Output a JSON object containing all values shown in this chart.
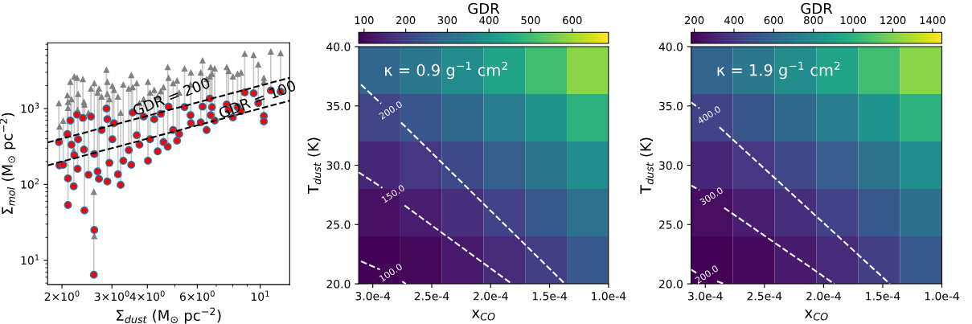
{
  "chart_data": [
    {
      "type": "scatter",
      "xlabel": "Σ$_{dust}$ (M$_{⊙}$ pc$^{−2}$)",
      "ylabel": "Σ$_{mol}$ (M$_{⊙}$ pc$^{−2}$)",
      "log": "xy",
      "grid": false,
      "legend": false,
      "xlim": [
        1.78,
        12.7
      ],
      "ylim": [
        4.8,
        7350
      ],
      "xticks": [
        {
          "value": 2,
          "label": "2×10$^{0}$"
        },
        {
          "value": 3,
          "label": "3×10$^{0}$"
        },
        {
          "value": 4,
          "label": "4×10$^{0}$"
        },
        {
          "value": 6,
          "label": "6×10$^{0}$"
        },
        {
          "value": 10,
          "label": "10$^{1}$"
        }
      ],
      "yticks": [
        {
          "value": 10,
          "label": "10$^{1}$"
        },
        {
          "value": 100,
          "label": "10$^{2}$"
        },
        {
          "value": 1000,
          "label": "10$^{3}$"
        }
      ],
      "annotations": [
        {
          "text": "GDR = 200",
          "x": 4.88,
          "y": 1390
        },
        {
          "text": "GDR = 100",
          "x": 9.8,
          "y": 1280
        }
      ],
      "series": [
        {
          "type": "scatter",
          "marker": "circle",
          "color": "#ff0000",
          "x": [
            1.95,
            1.96,
            2.02,
            2.09,
            2.1,
            2.1,
            2.14,
            2.16,
            2.2,
            2.21,
            2.26,
            2.27,
            2.28,
            2.37,
            2.39,
            2.4,
            2.48,
            2.53,
            2.59,
            2.6,
            2.6,
            2.67,
            2.7,
            2.76,
            2.87,
            2.89,
            2.89,
            2.94,
            3.01,
            3.05,
            3.15,
            3.22,
            3.29,
            3.44,
            3.51,
            3.55,
            3.67,
            3.75,
            3.88,
            4.02,
            4.09,
            4.23,
            4.35,
            4.46,
            4.56,
            4.72,
            4.75,
            4.93,
            5.09,
            5.18,
            5.41,
            5.68,
            5.7,
            6.17,
            6.26,
            6.47,
            6.64,
            6.69,
            6.76,
            6.91,
            7.62,
            7.74,
            8.01,
            8.32,
            8.56,
            8.82,
            9.48,
            9.84,
            10.3,
            10.3,
            10.9,
            11.8
          ],
          "values": [
            361,
            178,
            181,
            461,
            120,
            53.5,
            693,
            333,
            94.4,
            241,
            830,
            160,
            393,
            752,
            288,
            45.4,
            134,
            783,
            6.44,
            25.1,
            251,
            148,
            118,
            521,
            1000,
            722,
            109,
            192,
            393,
            640,
            136,
            98.4,
            205,
            283,
            181,
            885,
            444,
            333,
            783,
            205,
            393,
            722,
            272,
            850,
            361,
            313,
            1059,
            521,
            377,
            461,
            1042,
            816,
            640,
            655,
            1059,
            521,
            1352,
            816,
            1042,
            693,
            1130,
            960,
            764,
            1042,
            922,
            1629,
            1589,
            1177,
            796,
            676,
            1726,
            1671
          ],
          "errors": [
            [
              361,
              1177
            ],
            [
              178,
              580
            ],
            [
              181,
              693
            ],
            [
              461,
              1503
            ],
            [
              120,
              1225
            ],
            [
              53.5,
              1025
            ],
            [
              693,
              2255
            ],
            [
              333,
              1330
            ],
            [
              94.4,
              283
            ],
            [
              241,
              2655
            ],
            [
              830,
              2547
            ],
            [
              160,
              960
            ],
            [
              393,
              1564
            ],
            [
              752,
              2449
            ],
            [
              288,
              1225
            ],
            [
              45.4,
              1130
            ],
            [
              134,
              885
            ],
            [
              783,
              1841
            ],
            [
              6.44,
              80.2
            ],
            [
              20.9,
              25.1
            ],
            [
              251,
              2167
            ],
            [
              148,
              1629
            ],
            [
              118,
              1841
            ],
            [
              521,
              1442
            ],
            [
              1000,
              3251
            ],
            [
              722,
              2255
            ],
            [
              109,
              1564
            ],
            [
              192,
              1330
            ],
            [
              393,
              1995
            ],
            [
              640,
              1766
            ],
            [
              136,
              1442
            ],
            [
              98.4,
              885
            ],
            [
              205,
              2080
            ],
            [
              283,
              1841
            ],
            [
              181,
              2767
            ],
            [
              885,
              1918
            ],
            [
              444,
              2167
            ],
            [
              333,
              1177
            ],
            [
              783,
              1330
            ],
            [
              205,
              2255
            ],
            [
              393,
              1629
            ],
            [
              722,
              1766
            ],
            [
              272,
              1442
            ],
            [
              850,
              1698
            ],
            [
              361,
              1918
            ],
            [
              313,
              3532
            ],
            [
              1059,
              2547
            ],
            [
              521,
              2167
            ],
            [
              377,
              2350
            ],
            [
              461,
              1629
            ],
            [
              1042,
              3388
            ],
            [
              816,
              2080
            ],
            [
              640,
              2999
            ],
            [
              655,
              2999
            ],
            [
              1059,
              4325
            ],
            [
              521,
              2449
            ],
            [
              1352,
              2655
            ],
            [
              816,
              3532
            ],
            [
              1042,
              2878
            ],
            [
              693,
              3388
            ],
            [
              1130,
              3532
            ],
            [
              960,
              3126
            ],
            [
              764,
              2655
            ],
            [
              1042,
              2878
            ],
            [
              922,
              2999
            ],
            [
              1629,
              5297
            ],
            [
              1589,
              5093
            ],
            [
              1177,
              3828
            ],
            [
              796,
              2547
            ],
            [
              676,
              2255
            ],
            [
              1726,
              5662
            ],
            [
              1671,
              5395
            ]
          ]
        },
        {
          "type": "scatter",
          "marker": "triangle",
          "color": "#808080",
          "x": [
            1.95,
            1.96,
            2.02,
            2.09,
            2.1,
            2.1,
            2.14,
            2.16,
            2.2,
            2.21,
            2.26,
            2.27,
            2.28,
            2.37,
            2.39,
            2.4,
            2.48,
            2.53,
            2.59,
            2.6,
            2.6,
            2.67,
            2.7,
            2.76,
            2.87,
            2.89,
            2.89,
            2.94,
            3.01,
            3.05,
            3.15,
            3.22,
            3.29,
            3.44,
            3.51,
            3.55,
            3.67,
            3.75,
            3.88,
            4.02,
            4.09,
            4.23,
            4.35,
            4.46,
            4.56,
            4.72,
            4.75,
            4.93,
            5.09,
            5.18,
            5.41,
            5.68,
            5.7,
            6.17,
            6.26,
            6.47,
            6.64,
            6.69,
            6.76,
            6.91,
            7.62,
            7.74,
            8.01,
            8.32,
            8.56,
            8.82,
            9.48,
            9.84,
            10.3,
            10.3,
            10.9,
            11.8
          ],
          "values": [
            1177,
            580,
            693,
            1503,
            1225,
            1025,
            2255,
            1330,
            283,
            2655,
            2547,
            960,
            1564,
            2449,
            1225,
            1130,
            885,
            1841,
            80.2,
            20.9,
            2167,
            1629,
            1841,
            1442,
            3251,
            2255,
            1564,
            1330,
            1995,
            1766,
            1442,
            885,
            2080,
            1841,
            2767,
            1918,
            2167,
            1177,
            1330,
            2255,
            1629,
            1766,
            1442,
            1698,
            1918,
            3532,
            2547,
            2167,
            2350,
            1629,
            3388,
            2080,
            2999,
            2999,
            4325,
            2449,
            2655,
            3532,
            2878,
            3388,
            3532,
            3126,
            2655,
            2878,
            2999,
            5297,
            5093,
            3828,
            2547,
            2255,
            5662,
            5395
          ]
        },
        {
          "type": "line",
          "line_style": "dashed",
          "color": "#000000",
          "x": [
            1.78,
            12.7
          ],
          "values": [
            356,
            2540
          ]
        },
        {
          "type": "line",
          "line_style": "dashed",
          "color": "#000000",
          "x": [
            1.78,
            12.7
          ],
          "values": [
            178,
            1270
          ]
        }
      ]
    },
    {
      "type": "heatmap",
      "xlabel": "x$_{CO}$",
      "ylabel": "T$_{dust}$ (K)",
      "clabel": "GDR",
      "clim": [
        87,
        687
      ],
      "cticks": [
        100,
        200,
        300,
        400,
        500,
        600
      ],
      "xlim": [
        0.000312,
        0.0001
      ],
      "ylim": [
        20,
        40
      ],
      "xticks": [
        {
          "value": 0.0003,
          "label": "3.0e-4"
        },
        {
          "value": 0.00025,
          "label": "2.5e-4"
        },
        {
          "value": 0.0002,
          "label": "2.0e-4"
        },
        {
          "value": 0.00015,
          "label": "1.5e-4"
        },
        {
          "value": 0.0001,
          "label": "1.0e-4"
        }
      ],
      "yticks": [
        {
          "value": 20,
          "label": "20.0"
        },
        {
          "value": 25,
          "label": "25.0"
        },
        {
          "value": 30,
          "label": "30.0"
        },
        {
          "value": 35,
          "label": "35.0"
        },
        {
          "value": 40,
          "label": "40.0"
        }
      ],
      "cells": [
        [
          282,
          326,
          377,
          436,
          504,
          583
        ],
        [
          207,
          244,
          288,
          339,
          399,
          471
        ],
        [
          152,
          182,
          219,
          264,
          317,
          381
        ],
        [
          111,
          136,
          167,
          205,
          251,
          308
        ],
        [
          90,
          102,
          128,
          160,
          199,
          250
        ]
      ],
      "annotations": [
        "κ = 0.9 g$^{−1}$ cm$^{2}$",
        "200.0",
        "150.0",
        "100.0"
      ],
      "series": [
        {
          "type": "line",
          "line_style": "dashed",
          "color": "#ffffff",
          "x": [
            0.00031,
            0.000293,
            null,
            0.000276,
            0.000137
          ],
          "values": [
            36.8,
            35.2,
            null,
            33.6,
            20
          ]
        },
        {
          "type": "line",
          "line_style": "dashed",
          "color": "#ffffff",
          "x": [
            0.000312,
            0.000292,
            null,
            0.000273,
            0.000182
          ],
          "values": [
            29.4,
            28.1,
            null,
            26.6,
            20
          ]
        },
        {
          "type": "line",
          "line_style": "dashed",
          "color": "#ffffff",
          "x": [
            0.00031,
            0.000294,
            null,
            0.000275,
            0.000272
          ],
          "values": [
            21.9,
            21.2,
            null,
            20.2,
            20
          ]
        }
      ]
    },
    {
      "type": "heatmap",
      "xlabel": "x$_{CO}$",
      "ylabel": "T$_{dust}$ (K)",
      "clabel": "GDR",
      "clim": [
        184,
        1447
      ],
      "cticks": [
        200,
        400,
        600,
        800,
        1000,
        1200,
        1400
      ],
      "xlim": [
        0.000312,
        0.0001
      ],
      "ylim": [
        20,
        40
      ],
      "xticks": [
        {
          "value": 0.0003,
          "label": "3.0e-4"
        },
        {
          "value": 0.00025,
          "label": "2.5e-4"
        },
        {
          "value": 0.0002,
          "label": "2.0e-4"
        },
        {
          "value": 0.00015,
          "label": "1.5e-4"
        },
        {
          "value": 0.0001,
          "label": "1.0e-4"
        }
      ],
      "yticks": [
        {
          "value": 20,
          "label": "20.0"
        },
        {
          "value": 25,
          "label": "25.0"
        },
        {
          "value": 30,
          "label": "30.0"
        },
        {
          "value": 35,
          "label": "35.0"
        },
        {
          "value": 40,
          "label": "40.0"
        }
      ],
      "cells": [
        [
          592,
          685,
          792,
          916,
          1058,
          1224
        ],
        [
          435,
          512,
          605,
          712,
          838,
          989
        ],
        [
          319,
          382,
          460,
          554,
          666,
          800
        ],
        [
          233,
          286,
          351,
          431,
          527,
          647
        ],
        [
          190,
          214,
          269,
          336,
          418,
          525
        ]
      ],
      "annotations": [
        "κ = 1.9 g$^{−1}$ cm$^{2}$",
        "400.0",
        "300.0",
        "200.0"
      ],
      "series": [
        {
          "type": "line",
          "line_style": "dashed",
          "color": "#ffffff",
          "x": [
            0.000312,
            0.000305,
            null,
            0.000288,
            0.000144
          ],
          "values": [
            35.3,
            34.8,
            null,
            33.2,
            20
          ]
        },
        {
          "type": "line",
          "line_style": "dashed",
          "color": "#ffffff",
          "x": [
            0.000312,
            0.000305,
            null,
            0.000284,
            0.000191
          ],
          "values": [
            28.3,
            27.9,
            null,
            26.4,
            20
          ]
        },
        {
          "type": "line",
          "line_style": "dashed",
          "color": "#ffffff",
          "x": [
            0.000312,
            0.000307,
            null,
            0.00029,
            0.000284
          ],
          "values": [
            21.2,
            20.9,
            null,
            20.2,
            20
          ]
        }
      ]
    }
  ]
}
